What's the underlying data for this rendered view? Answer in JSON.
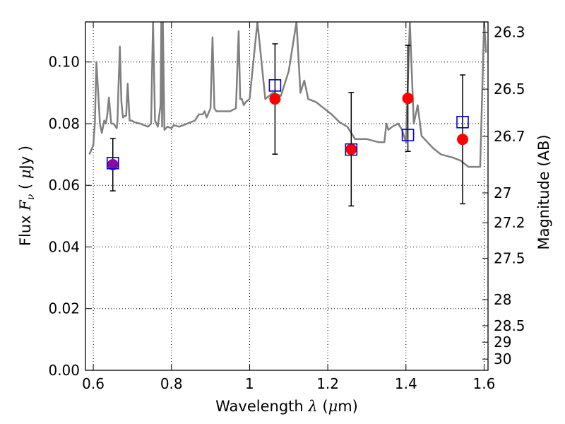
{
  "chart_data": {
    "type": "scatter",
    "title": "",
    "xlabel": "Wavelength  λ (μm)",
    "ylabel": "Flux  Fν  ( μJy )",
    "y2label": "Magnitude (AB)",
    "xlim": [
      0.58,
      1.61
    ],
    "ylim": [
      0.0,
      0.113
    ],
    "grid": true,
    "x_ticks": [
      "0.6",
      "0.8",
      "1",
      "1.2",
      "1.4",
      "1.6"
    ],
    "x_tick_values": [
      0.6,
      0.8,
      1.0,
      1.2,
      1.4,
      1.6
    ],
    "y_ticks": [
      "0.00",
      "0.02",
      "0.04",
      "0.06",
      "0.08",
      "0.10"
    ],
    "y_tick_values": [
      0.0,
      0.02,
      0.04,
      0.06,
      0.08,
      0.1
    ],
    "y2_ticks": [
      "26.3",
      "26.5",
      "26.7",
      "27",
      "27.2",
      "27.5",
      "28",
      "28.5",
      "29",
      "30"
    ],
    "y2_tick_values": [
      26.3,
      26.5,
      26.7,
      27.0,
      27.2,
      27.5,
      28.0,
      28.5,
      29.0,
      30.0
    ],
    "series": [
      {
        "marker": "filled-circle",
        "x": [
          1.065,
          1.26,
          1.405,
          1.545
        ],
        "y": [
          0.088,
          0.0717,
          0.0882,
          0.0749
        ],
        "yerr": [
          0.0179,
          0.0184,
          0.0172,
          0.0209
        ]
      },
      {
        "marker": "filled-circle",
        "x": [
          0.65
        ],
        "y": [
          0.0667
        ],
        "yerr": [
          0.0085
        ]
      },
      {
        "marker": "open-square",
        "x": [
          0.65,
          1.065,
          1.26,
          1.405,
          1.545
        ],
        "y": [
          0.0672,
          0.0924,
          0.0716,
          0.0763,
          0.0805
        ]
      },
      {
        "marker": "line",
        "x": [
          0.59,
          0.6,
          0.604,
          0.608,
          0.613,
          0.617,
          0.622,
          0.628,
          0.632,
          0.636,
          0.64,
          0.646,
          0.652,
          0.66,
          0.662,
          0.664,
          0.668,
          0.672,
          0.676,
          0.68,
          0.684,
          0.688,
          0.693,
          0.698,
          0.705,
          0.72,
          0.74,
          0.748,
          0.75,
          0.753,
          0.758,
          0.765,
          0.772,
          0.774,
          0.776,
          0.778,
          0.782,
          0.79,
          0.8,
          0.806,
          0.82,
          0.84,
          0.86,
          0.87,
          0.88,
          0.885,
          0.89,
          0.9,
          0.905,
          0.91,
          0.915,
          0.93,
          0.95,
          0.965,
          0.972,
          0.976,
          0.98,
          0.985,
          0.99,
          1.0,
          1.02,
          1.04,
          1.06,
          1.08,
          1.1,
          1.12,
          1.13,
          1.14,
          1.15,
          1.17,
          1.19,
          1.21,
          1.23,
          1.25,
          1.27,
          1.3,
          1.33,
          1.345,
          1.35,
          1.355,
          1.365,
          1.38,
          1.39,
          1.4,
          1.41,
          1.42,
          1.43,
          1.44,
          1.455,
          1.47,
          1.49,
          1.52,
          1.54,
          1.56,
          1.57,
          1.58,
          1.59,
          1.6,
          1.605
        ],
        "y": [
          0.07,
          0.073,
          0.08,
          0.1,
          0.089,
          0.08,
          0.077,
          0.081,
          0.08,
          0.083,
          0.0885,
          0.08,
          0.08,
          0.0785,
          0.081,
          0.09,
          0.105,
          0.087,
          0.082,
          0.0825,
          0.0825,
          0.093,
          0.081,
          0.081,
          0.0805,
          0.08,
          0.079,
          0.08,
          0.095,
          0.113,
          0.081,
          0.079,
          0.086,
          0.113,
          0.079,
          0.113,
          0.078,
          0.079,
          0.0785,
          0.0795,
          0.079,
          0.08,
          0.081,
          0.083,
          0.083,
          0.084,
          0.082,
          0.085,
          0.108,
          0.085,
          0.084,
          0.084,
          0.084,
          0.085,
          0.11,
          0.088,
          0.088,
          0.086,
          0.087,
          0.088,
          0.113,
          0.088,
          0.09,
          0.089,
          0.097,
          0.113,
          0.09,
          0.094,
          0.088,
          0.087,
          0.085,
          0.083,
          0.0805,
          0.079,
          0.075,
          0.075,
          0.074,
          0.074,
          0.08,
          0.078,
          0.079,
          0.08,
          0.078,
          0.074,
          0.113,
          0.08,
          0.086,
          0.076,
          0.074,
          0.072,
          0.07,
          0.069,
          0.068,
          0.066,
          0.066,
          0.066,
          0.066,
          0.113,
          0.103
        ]
      }
    ],
    "colors": {
      "circle": "#ff0000",
      "circle_overlap": "#8b0aa5",
      "square": "#0000cc",
      "errorbar": "#000000",
      "sed_line": "#808080",
      "grid": "#000000"
    }
  }
}
